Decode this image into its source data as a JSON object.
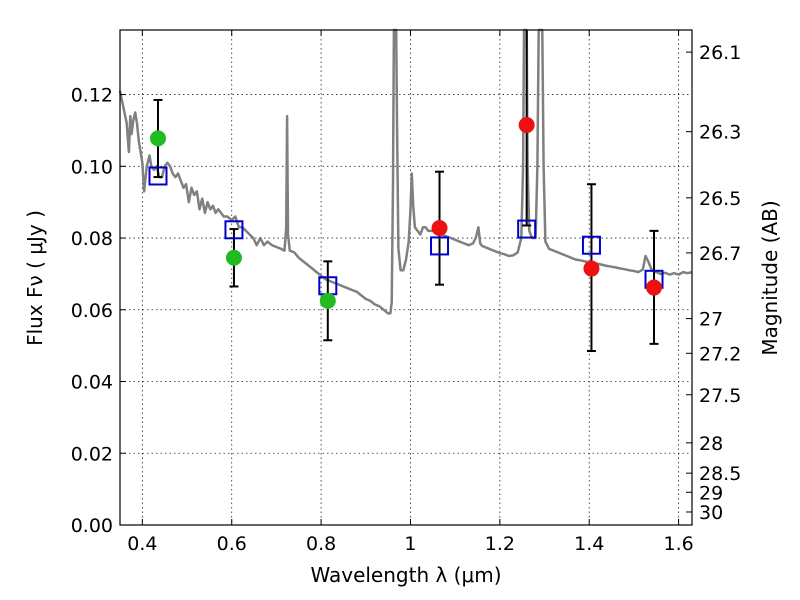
{
  "chart_data": {
    "type": "scatter",
    "xlabel": "Wavelength  λ (μm)",
    "ylabel": "Flux  Fν  ( μJy )",
    "ylabel_right": "Magnitude (AB)",
    "xlim": [
      0.35,
      1.63
    ],
    "ylim": [
      0.0,
      0.138
    ],
    "grid": true,
    "x_ticks": [
      {
        "value": 0.4,
        "label": "0.4"
      },
      {
        "value": 0.6,
        "label": "0.6"
      },
      {
        "value": 0.8,
        "label": "0.8"
      },
      {
        "value": 1.0,
        "label": "1"
      },
      {
        "value": 1.2,
        "label": "1.2"
      },
      {
        "value": 1.4,
        "label": "1.4"
      },
      {
        "value": 1.6,
        "label": "1.6"
      }
    ],
    "y_ticks": [
      {
        "value": 0.0,
        "label": "0.00"
      },
      {
        "value": 0.02,
        "label": "0.02"
      },
      {
        "value": 0.04,
        "label": "0.04"
      },
      {
        "value": 0.06,
        "label": "0.06"
      },
      {
        "value": 0.08,
        "label": "0.08"
      },
      {
        "value": 0.1,
        "label": "0.10"
      },
      {
        "value": 0.12,
        "label": "0.12"
      }
    ],
    "mag_ticks": [
      {
        "value": 26.1,
        "label": "26.1"
      },
      {
        "value": 26.3,
        "label": "26.3"
      },
      {
        "value": 26.5,
        "label": "26.5"
      },
      {
        "value": 26.7,
        "label": "26.7"
      },
      {
        "value": 27.0,
        "label": "27"
      },
      {
        "value": 27.2,
        "label": "27.2"
      },
      {
        "value": 27.5,
        "label": "27.5"
      },
      {
        "value": 28.0,
        "label": "28"
      },
      {
        "value": 28.5,
        "label": "28.5"
      },
      {
        "value": 29.0,
        "label": "29"
      },
      {
        "value": 30.0,
        "label": "30"
      }
    ],
    "colors": {
      "model": "#808080",
      "green_points": "#22bb22",
      "red_points": "#ee1111",
      "squares": "#0000cc",
      "error_bars": "#000000"
    },
    "model_spectrum": [
      [
        0.35,
        0.121
      ],
      [
        0.355,
        0.118
      ],
      [
        0.36,
        0.115
      ],
      [
        0.365,
        0.112
      ],
      [
        0.37,
        0.104
      ],
      [
        0.373,
        0.114
      ],
      [
        0.376,
        0.109
      ],
      [
        0.38,
        0.113
      ],
      [
        0.384,
        0.115
      ],
      [
        0.388,
        0.112
      ],
      [
        0.392,
        0.107
      ],
      [
        0.396,
        0.104
      ],
      [
        0.4,
        0.101
      ],
      [
        0.404,
        0.093
      ],
      [
        0.41,
        0.1
      ],
      [
        0.416,
        0.103
      ],
      [
        0.42,
        0.1
      ],
      [
        0.426,
        0.099
      ],
      [
        0.432,
        0.1
      ],
      [
        0.438,
        0.097
      ],
      [
        0.444,
        0.097
      ],
      [
        0.45,
        0.1
      ],
      [
        0.456,
        0.101
      ],
      [
        0.462,
        0.1
      ],
      [
        0.468,
        0.098
      ],
      [
        0.474,
        0.097
      ],
      [
        0.48,
        0.098
      ],
      [
        0.486,
        0.096
      ],
      [
        0.492,
        0.094
      ],
      [
        0.498,
        0.095
      ],
      [
        0.504,
        0.09
      ],
      [
        0.51,
        0.094
      ],
      [
        0.516,
        0.092
      ],
      [
        0.522,
        0.093
      ],
      [
        0.528,
        0.088
      ],
      [
        0.534,
        0.091
      ],
      [
        0.54,
        0.087
      ],
      [
        0.546,
        0.09
      ],
      [
        0.552,
        0.088
      ],
      [
        0.558,
        0.089
      ],
      [
        0.564,
        0.087
      ],
      [
        0.57,
        0.088
      ],
      [
        0.576,
        0.087
      ],
      [
        0.582,
        0.086
      ],
      [
        0.59,
        0.086
      ],
      [
        0.6,
        0.085
      ],
      [
        0.608,
        0.086
      ],
      [
        0.616,
        0.083
      ],
      [
        0.624,
        0.083
      ],
      [
        0.632,
        0.082
      ],
      [
        0.64,
        0.081
      ],
      [
        0.648,
        0.08
      ],
      [
        0.656,
        0.078
      ],
      [
        0.664,
        0.08
      ],
      [
        0.672,
        0.078
      ],
      [
        0.68,
        0.079
      ],
      [
        0.69,
        0.078
      ],
      [
        0.7,
        0.0775
      ],
      [
        0.71,
        0.077
      ],
      [
        0.718,
        0.0765
      ],
      [
        0.722,
        0.083
      ],
      [
        0.724,
        0.114
      ],
      [
        0.726,
        0.081
      ],
      [
        0.73,
        0.0765
      ],
      [
        0.74,
        0.076
      ],
      [
        0.75,
        0.0745
      ],
      [
        0.76,
        0.0735
      ],
      [
        0.77,
        0.0725
      ],
      [
        0.78,
        0.0715
      ],
      [
        0.79,
        0.0705
      ],
      [
        0.8,
        0.0695
      ],
      [
        0.81,
        0.0685
      ],
      [
        0.82,
        0.068
      ],
      [
        0.83,
        0.0675
      ],
      [
        0.84,
        0.067
      ],
      [
        0.85,
        0.0665
      ],
      [
        0.86,
        0.066
      ],
      [
        0.87,
        0.0655
      ],
      [
        0.88,
        0.065
      ],
      [
        0.89,
        0.064
      ],
      [
        0.9,
        0.063
      ],
      [
        0.91,
        0.0625
      ],
      [
        0.92,
        0.0615
      ],
      [
        0.93,
        0.061
      ],
      [
        0.94,
        0.06
      ],
      [
        0.95,
        0.059
      ],
      [
        0.955,
        0.059
      ],
      [
        0.958,
        0.062
      ],
      [
        0.961,
        0.095
      ],
      [
        0.963,
        0.138
      ],
      [
        0.968,
        0.138
      ],
      [
        0.97,
        0.11
      ],
      [
        0.973,
        0.077
      ],
      [
        0.978,
        0.071
      ],
      [
        0.984,
        0.071
      ],
      [
        0.99,
        0.074
      ],
      [
        0.996,
        0.079
      ],
      [
        1.0,
        0.088
      ],
      [
        1.003,
        0.098
      ],
      [
        1.006,
        0.089
      ],
      [
        1.01,
        0.083
      ],
      [
        1.016,
        0.082
      ],
      [
        1.022,
        0.081
      ],
      [
        1.028,
        0.083
      ],
      [
        1.034,
        0.083
      ],
      [
        1.04,
        0.082
      ],
      [
        1.05,
        0.082
      ],
      [
        1.06,
        0.082
      ],
      [
        1.07,
        0.081
      ],
      [
        1.08,
        0.0805
      ],
      [
        1.09,
        0.08
      ],
      [
        1.1,
        0.0795
      ],
      [
        1.11,
        0.079
      ],
      [
        1.12,
        0.0785
      ],
      [
        1.13,
        0.078
      ],
      [
        1.14,
        0.0785
      ],
      [
        1.146,
        0.08
      ],
      [
        1.152,
        0.083
      ],
      [
        1.156,
        0.0785
      ],
      [
        1.16,
        0.0778
      ],
      [
        1.17,
        0.0773
      ],
      [
        1.18,
        0.0768
      ],
      [
        1.19,
        0.0763
      ],
      [
        1.2,
        0.0758
      ],
      [
        1.21,
        0.0755
      ],
      [
        1.22,
        0.075
      ],
      [
        1.23,
        0.0752
      ],
      [
        1.24,
        0.076
      ],
      [
        1.248,
        0.08
      ],
      [
        1.252,
        0.1
      ],
      [
        1.254,
        0.138
      ],
      [
        1.26,
        0.138
      ],
      [
        1.262,
        0.1
      ],
      [
        1.266,
        0.082
      ],
      [
        1.272,
        0.08
      ],
      [
        1.28,
        0.08
      ],
      [
        1.284,
        0.1
      ],
      [
        1.287,
        0.138
      ],
      [
        1.295,
        0.138
      ],
      [
        1.298,
        0.1
      ],
      [
        1.302,
        0.079
      ],
      [
        1.31,
        0.077
      ],
      [
        1.32,
        0.0765
      ],
      [
        1.33,
        0.076
      ],
      [
        1.34,
        0.0755
      ],
      [
        1.35,
        0.075
      ],
      [
        1.36,
        0.0745
      ],
      [
        1.37,
        0.074
      ],
      [
        1.38,
        0.0738
      ],
      [
        1.39,
        0.0735
      ],
      [
        1.4,
        0.0732
      ],
      [
        1.41,
        0.073
      ],
      [
        1.42,
        0.0728
      ],
      [
        1.43,
        0.0725
      ],
      [
        1.44,
        0.0722
      ],
      [
        1.45,
        0.072
      ],
      [
        1.46,
        0.0718
      ],
      [
        1.47,
        0.0715
      ],
      [
        1.48,
        0.0713
      ],
      [
        1.49,
        0.071
      ],
      [
        1.5,
        0.0708
      ],
      [
        1.51,
        0.0705
      ],
      [
        1.52,
        0.0712
      ],
      [
        1.526,
        0.075
      ],
      [
        1.532,
        0.0735
      ],
      [
        1.54,
        0.071
      ],
      [
        1.55,
        0.0705
      ],
      [
        1.56,
        0.07
      ],
      [
        1.57,
        0.0703
      ],
      [
        1.58,
        0.0698
      ],
      [
        1.59,
        0.0702
      ],
      [
        1.6,
        0.0698
      ],
      [
        1.61,
        0.0705
      ],
      [
        1.62,
        0.0702
      ],
      [
        1.63,
        0.0705
      ]
    ],
    "observed": [
      {
        "x": 0.435,
        "y": 0.1078,
        "color": "green",
        "err_low": 0.097,
        "err_high": 0.1185
      },
      {
        "x": 0.605,
        "y": 0.0745,
        "color": "green",
        "err_low": 0.0665,
        "err_high": 0.0825
      },
      {
        "x": 0.815,
        "y": 0.0625,
        "color": "green",
        "err_low": 0.0515,
        "err_high": 0.0735
      },
      {
        "x": 1.065,
        "y": 0.0828,
        "color": "red",
        "err_low": 0.067,
        "err_high": 0.0985
      },
      {
        "x": 1.26,
        "y": 0.1115,
        "color": "red",
        "err_low": 0.0835,
        "err_high": 0.138
      },
      {
        "x": 1.405,
        "y": 0.0715,
        "color": "red",
        "err_low": 0.0485,
        "err_high": 0.095
      },
      {
        "x": 1.545,
        "y": 0.0662,
        "color": "red",
        "err_low": 0.0505,
        "err_high": 0.082
      }
    ],
    "model_photometry": [
      {
        "x": 0.435,
        "y": 0.0973
      },
      {
        "x": 0.605,
        "y": 0.0823
      },
      {
        "x": 0.815,
        "y": 0.0667
      },
      {
        "x": 1.065,
        "y": 0.0778
      },
      {
        "x": 1.26,
        "y": 0.0825
      },
      {
        "x": 1.405,
        "y": 0.078
      },
      {
        "x": 1.545,
        "y": 0.0685
      }
    ]
  }
}
